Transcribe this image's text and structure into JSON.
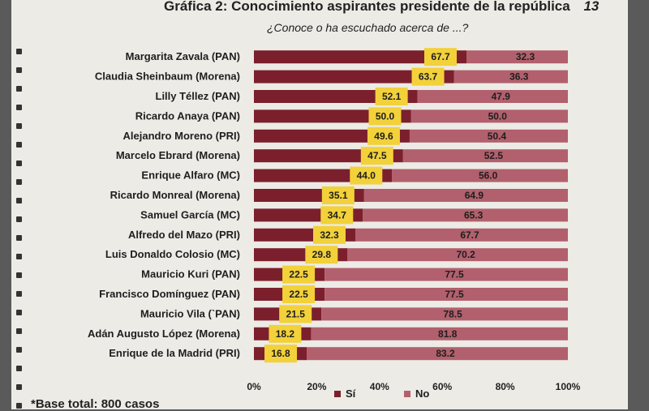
{
  "page": {
    "title": "Gráfica 2: Conocimiento aspirantes presidente de la república",
    "page_number": "13",
    "subtitle": "¿Conoce o ha escuchado acerca de ...?",
    "footnote": "*Base total: 800 casos"
  },
  "colors": {
    "si": "#7c1f2c",
    "no": "#b2606d",
    "label_box": "#f2d13a"
  },
  "chart_data": {
    "type": "bar",
    "orientation": "horizontal",
    "stacked": true,
    "categories": [
      "Margarita Zavala (PAN)",
      "Claudia Sheinbaum (Morena)",
      "Lilly Téllez (PAN)",
      "Ricardo Anaya (PAN)",
      "Alejandro Moreno (PRI)",
      "Marcelo Ebrard (Morena)",
      "Enrique Alfaro (MC)",
      "Ricardo Monreal (Morena)",
      "Samuel García (MC)",
      "Alfredo del Mazo (PRI)",
      "Luis Donaldo Colosio (MC)",
      "Mauricio Kuri (PAN)",
      "Francisco Domínguez (PAN)",
      "Mauricio Vila (`PAN)",
      "Adán Augusto López (Morena)",
      "Enrique de la Madrid (PRI)"
    ],
    "series": [
      {
        "name": "Sí",
        "values": [
          67.7,
          63.7,
          52.1,
          50.0,
          49.6,
          47.5,
          44.0,
          35.1,
          34.7,
          32.3,
          29.8,
          22.5,
          22.5,
          21.5,
          18.2,
          16.8
        ]
      },
      {
        "name": "No",
        "values": [
          32.3,
          36.3,
          47.9,
          50.0,
          50.4,
          52.5,
          56.0,
          64.9,
          65.3,
          67.7,
          70.2,
          77.5,
          77.5,
          78.5,
          81.8,
          83.2
        ]
      }
    ],
    "value_labels_si": [
      "67.7",
      "63.7",
      "52.1",
      "50.0",
      "49.6",
      "47.5",
      "44.0",
      "35.1",
      "34.7",
      "32.3",
      "29.8",
      "22.5",
      "22.5",
      "21.5",
      "18.2",
      "16.8"
    ],
    "value_labels_no": [
      "32.3",
      "36.3",
      "47.9",
      "50.0",
      "50.4",
      "52.5",
      "56.0",
      "64.9",
      "65.3",
      "67.7",
      "70.2",
      "77.5",
      "77.5",
      "78.5",
      "81.8",
      "83.2"
    ],
    "x_ticks": [
      "0%",
      "20%",
      "40%",
      "60%",
      "80%",
      "100%"
    ],
    "xlim": [
      0,
      100
    ],
    "legend": [
      "Sí",
      "No"
    ],
    "legend_position": "bottom",
    "grid": false
  }
}
